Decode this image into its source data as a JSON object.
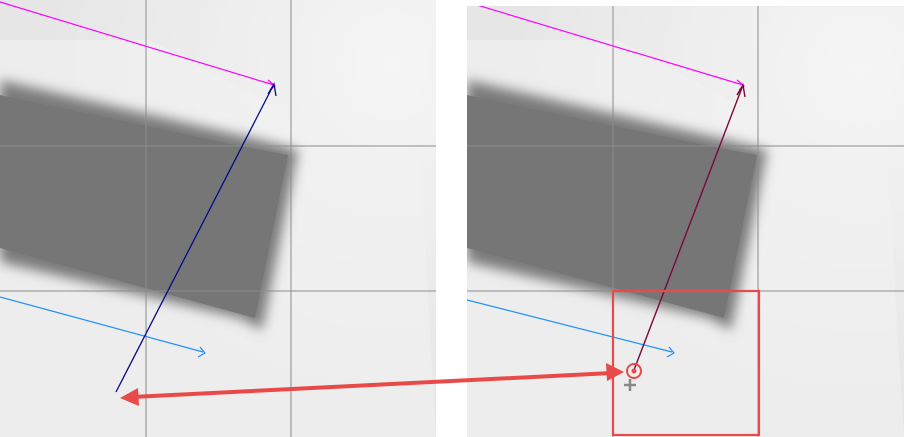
{
  "panels": [
    {
      "id": "before",
      "view": "road-grid-view"
    },
    {
      "id": "after",
      "view": "road-grid-view",
      "highlight": "selection-box"
    }
  ],
  "colors": {
    "background": "#e9e9e9",
    "grid": "#8c8c8c",
    "road_dark": "#7a7a7a",
    "magenta_line": "#ff00ff",
    "navy_line": "#0a0a8a",
    "blue_line": "#1e90ff",
    "maroon_line": "#7a0a3c",
    "accent_red": "#e84a4a",
    "crosshair": "#888888"
  },
  "icons": [
    "target-marker-icon",
    "crosshair-plus-icon",
    "arrowhead-icon",
    "double-arrow-icon"
  ]
}
